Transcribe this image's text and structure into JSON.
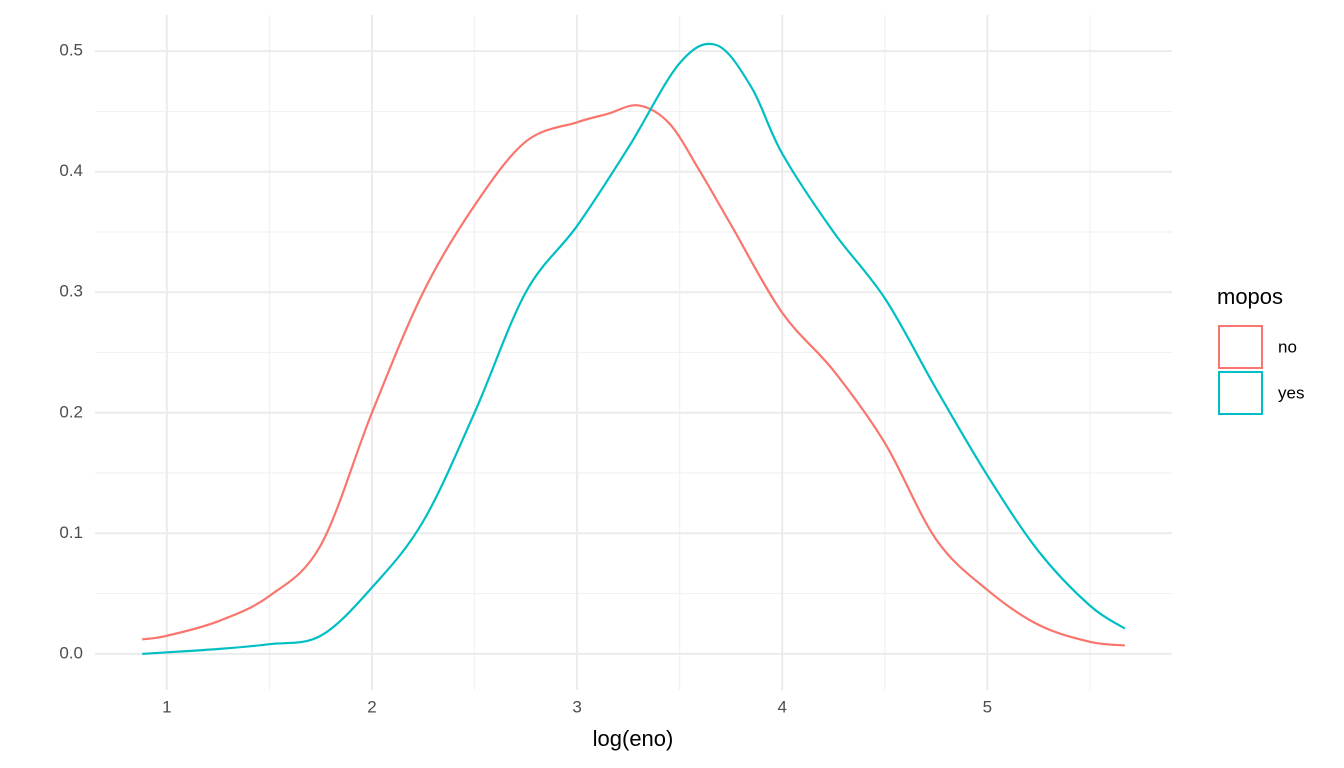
{
  "chart_data": {
    "type": "line",
    "x_label": "log(eno)",
    "legend_title": "mopos",
    "xlim": [
      0.65,
      5.9
    ],
    "ylim": [
      -0.03,
      0.53
    ],
    "xticks": [
      1,
      2,
      3,
      4,
      5
    ],
    "yticks": [
      {
        "value": 0,
        "label": "0.0"
      },
      0.1,
      0.2,
      0.3,
      0.4,
      0.5
    ],
    "xminor": [
      1.5,
      2.5,
      3.5,
      4.5,
      5.5
    ],
    "yminor": [
      0.05,
      0.15,
      0.25,
      0.35,
      0.45
    ],
    "grid": true,
    "legend": "right",
    "series": [
      {
        "name": "no",
        "color": "#F8766D",
        "x": [
          0.88,
          1.0,
          1.25,
          1.5,
          1.75,
          2.0,
          2.25,
          2.5,
          2.75,
          3.0,
          3.15,
          3.3,
          3.45,
          3.6,
          3.75,
          4.0,
          4.25,
          4.5,
          4.75,
          5.0,
          5.25,
          5.5,
          5.67
        ],
        "values": [
          0.012,
          0.015,
          0.027,
          0.048,
          0.09,
          0.2,
          0.3,
          0.372,
          0.425,
          0.441,
          0.448,
          0.455,
          0.44,
          0.4,
          0.356,
          0.283,
          0.235,
          0.175,
          0.095,
          0.053,
          0.024,
          0.01,
          0.007
        ]
      },
      {
        "name": "yes",
        "color": "#00BFC4",
        "x": [
          0.88,
          1.25,
          1.5,
          1.75,
          2.0,
          2.25,
          2.5,
          2.75,
          3.0,
          3.25,
          3.5,
          3.68,
          3.85,
          4.0,
          4.25,
          4.5,
          4.75,
          5.0,
          5.25,
          5.5,
          5.67
        ],
        "values": [
          0.0,
          0.004,
          0.008,
          0.015,
          0.055,
          0.11,
          0.2,
          0.3,
          0.355,
          0.42,
          0.49,
          0.505,
          0.47,
          0.415,
          0.35,
          0.295,
          0.22,
          0.148,
          0.085,
          0.04,
          0.021
        ]
      }
    ]
  }
}
